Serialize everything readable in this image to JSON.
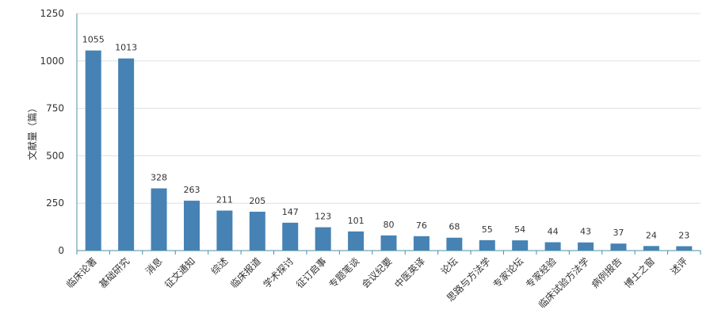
{
  "chart_data": {
    "type": "bar",
    "ylabel": "文献量（篇）",
    "ylim": [
      0,
      1250
    ],
    "yticks": [
      0,
      250,
      500,
      750,
      1000,
      1250
    ],
    "grid": true,
    "colors": {
      "bar": "#4682b4",
      "grid": "#e0e0e0",
      "axis": "#4a8fa6",
      "text": "#333333"
    },
    "categories": [
      "临床论著",
      "基础研究",
      "消息",
      "征文通知",
      "综述",
      "临床报道",
      "学术探讨",
      "征订启事",
      "专题笔谈",
      "会议纪要",
      "中医英译",
      "论坛",
      "思路与方法学",
      "专家论坛",
      "专家经验",
      "临床试验方法学",
      "病例报告",
      "博士之窗",
      "述评"
    ],
    "values": [
      1055,
      1013,
      328,
      263,
      211,
      205,
      147,
      123,
      101,
      80,
      76,
      68,
      55,
      54,
      44,
      43,
      37,
      24,
      23
    ]
  }
}
